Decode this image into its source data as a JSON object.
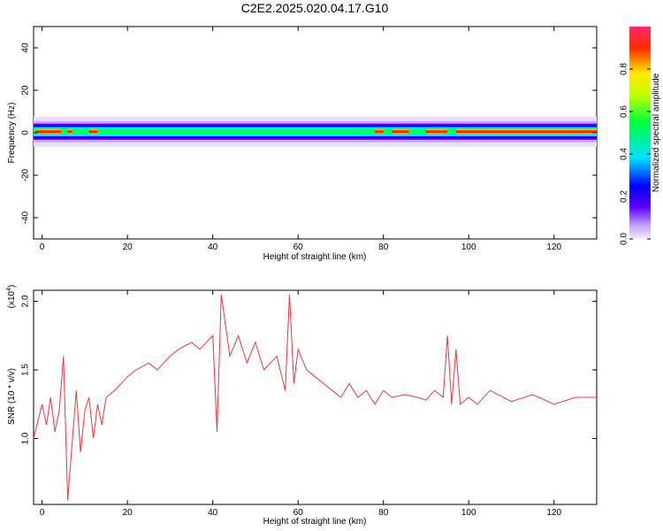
{
  "title": "C2E2.2025.020.04.17.G10",
  "chart_data": [
    {
      "type": "heatmap",
      "xlabel": "Height of straight line (km)",
      "ylabel": "Frequency (Hz)",
      "xlim": [
        -2,
        130
      ],
      "ylim": [
        -50,
        50
      ],
      "xticks": [
        0,
        20,
        40,
        60,
        80,
        100,
        120
      ],
      "xtick_labels": [
        "0",
        "20",
        "40",
        "60",
        "80",
        "100",
        "120"
      ],
      "yticks": [
        -40,
        -20,
        0,
        20,
        40
      ],
      "ytick_labels": [
        "-40",
        "-20",
        "0",
        "20",
        "40"
      ],
      "colorbar": {
        "label": "Normalized spectral amplitude",
        "range": [
          0,
          1
        ],
        "ticks": [
          0.0,
          0.2,
          0.4,
          0.6,
          0.8
        ],
        "tick_labels": [
          "0.0",
          "0.2",
          "0.4",
          "0.6",
          "0.8"
        ]
      },
      "band_center_hz": 0.5,
      "hotspots_km": [
        [
          -1.5,
          4.5
        ],
        [
          6,
          7
        ],
        [
          11,
          13
        ],
        [
          78,
          80
        ],
        [
          82,
          86
        ],
        [
          90,
          95
        ],
        [
          97,
          130
        ]
      ]
    },
    {
      "type": "line",
      "xlabel": "Height of straight line (km)",
      "ylabel": "SNR (10 * v/v)",
      "y_multiplier": "(x10",
      "y_multiplier_exp": "4",
      "y_multiplier_close": ")",
      "xlim": [
        -2,
        130
      ],
      "ylim": [
        0.52,
        2.08
      ],
      "xticks": [
        0,
        20,
        40,
        60,
        80,
        100,
        120
      ],
      "xtick_labels": [
        "0",
        "20",
        "40",
        "60",
        "80",
        "100",
        "120"
      ],
      "yticks": [
        1.0,
        1.5,
        2.0
      ],
      "ytick_labels": [
        "1.0",
        "1.5",
        "2.0"
      ],
      "series": [
        {
          "color": "#e8383d",
          "x": [
            -2,
            0,
            1,
            2,
            3,
            4,
            5,
            6,
            7,
            8,
            9,
            10,
            11,
            12,
            13,
            14,
            15,
            17,
            20,
            22,
            25,
            27,
            30,
            32,
            35,
            37,
            40,
            41,
            42,
            44,
            46,
            48,
            50,
            52,
            55,
            57,
            58,
            59,
            60,
            62,
            64,
            66,
            68,
            70,
            72,
            74,
            76,
            78,
            80,
            82,
            85,
            88,
            90,
            92,
            94,
            95,
            96,
            97,
            98,
            100,
            102,
            105,
            110,
            115,
            120,
            125,
            130
          ],
          "y": [
            1.0,
            1.25,
            1.1,
            1.3,
            1.05,
            1.2,
            1.6,
            0.55,
            0.95,
            1.35,
            0.9,
            1.2,
            1.3,
            1.0,
            1.25,
            1.1,
            1.3,
            1.35,
            1.45,
            1.5,
            1.55,
            1.5,
            1.6,
            1.65,
            1.7,
            1.65,
            1.75,
            1.05,
            2.05,
            1.6,
            1.75,
            1.55,
            1.7,
            1.5,
            1.6,
            1.35,
            2.05,
            1.4,
            1.65,
            1.5,
            1.45,
            1.4,
            1.35,
            1.3,
            1.4,
            1.3,
            1.35,
            1.25,
            1.35,
            1.3,
            1.32,
            1.3,
            1.28,
            1.35,
            1.3,
            1.75,
            1.25,
            1.65,
            1.25,
            1.3,
            1.25,
            1.35,
            1.27,
            1.32,
            1.25,
            1.3,
            1.3
          ]
        }
      ]
    }
  ]
}
